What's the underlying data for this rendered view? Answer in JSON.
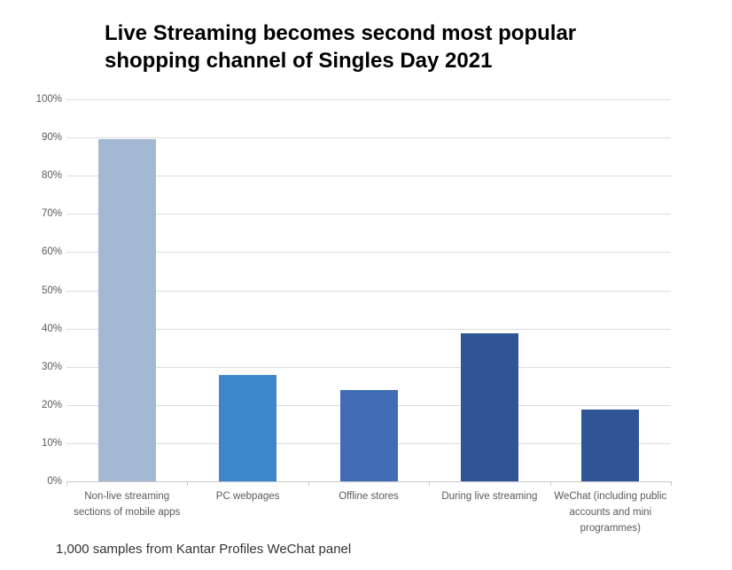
{
  "title": "Live Streaming becomes second most popular shopping channel of Singles Day 2021",
  "source_note": "1,000 samples from Kantar Profiles WeChat panel",
  "chart_data": {
    "type": "bar",
    "title": "Live Streaming becomes second most popular shopping channel of Singles Day 2021",
    "categories": [
      "Non-live streaming sections of mobile apps",
      "PC webpages",
      "Offline stores",
      "During live streaming",
      "WeChat (including public accounts and mini programmes)"
    ],
    "values": [
      89.5,
      27.8,
      23.9,
      38.7,
      18.7
    ],
    "bar_colors": [
      "#a3b8d2",
      "#3e86cc",
      "#3f6cb5",
      "#2f5597",
      "#2f5597"
    ],
    "xlabel": "",
    "ylabel": "",
    "ylim": [
      0,
      100
    ],
    "ytick_step": 10,
    "ytick_labels": [
      "0%",
      "10%",
      "20%",
      "30%",
      "40%",
      "50%",
      "60%",
      "70%",
      "80%",
      "90%",
      "100%"
    ],
    "grid": true,
    "legend": false,
    "annotation": "1,000 samples from Kantar Profiles WeChat panel"
  },
  "colors": {
    "background": "#ffffff",
    "gridline": "#dcdcdc",
    "axis_line": "#c9c9c9",
    "axis_text": "#595959",
    "title_text": "#000000",
    "note_text": "#333333"
  }
}
